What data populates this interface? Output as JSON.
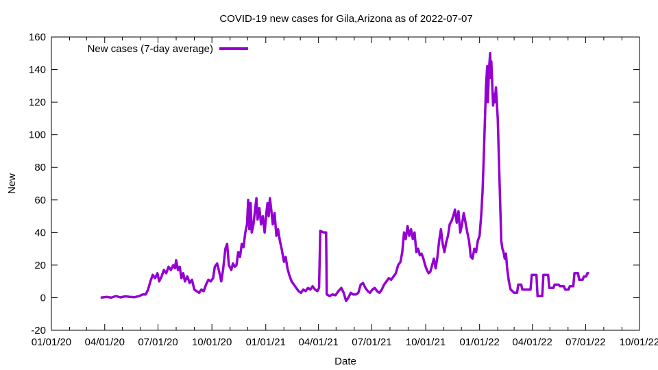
{
  "chart_data": {
    "type": "line",
    "title": "COVID-19 new cases for Gila,Arizona as of 2022-07-07",
    "xlabel": "Date",
    "ylabel": "New",
    "xlim": [
      "2020-01-01",
      "2022-10-01"
    ],
    "ylim": [
      -20,
      160
    ],
    "x_ticks": [
      "01/01/20",
      "04/01/20",
      "07/01/20",
      "10/01/20",
      "01/01/21",
      "04/01/21",
      "07/01/21",
      "10/01/21",
      "01/01/22",
      "04/01/22",
      "07/01/22",
      "10/01/22"
    ],
    "y_ticks": [
      -20,
      0,
      20,
      40,
      60,
      80,
      100,
      120,
      140,
      160
    ],
    "grid": false,
    "legend": "top-left",
    "series": [
      {
        "name": "New cases (7-day average)",
        "color": "#9400D3",
        "points": [
          [
            "2020-03-25",
            0
          ],
          [
            "2020-04-05",
            0.5
          ],
          [
            "2020-04-12",
            0
          ],
          [
            "2020-04-20",
            1
          ],
          [
            "2020-04-28",
            0.2
          ],
          [
            "2020-05-06",
            0.8
          ],
          [
            "2020-05-14",
            0.5
          ],
          [
            "2020-05-22",
            0.3
          ],
          [
            "2020-05-30",
            1
          ],
          [
            "2020-06-05",
            2
          ],
          [
            "2020-06-10",
            2
          ],
          [
            "2020-06-14",
            5
          ],
          [
            "2020-06-18",
            10
          ],
          [
            "2020-06-22",
            14
          ],
          [
            "2020-06-26",
            12
          ],
          [
            "2020-06-30",
            15
          ],
          [
            "2020-07-03",
            10
          ],
          [
            "2020-07-07",
            13
          ],
          [
            "2020-07-11",
            17
          ],
          [
            "2020-07-15",
            15
          ],
          [
            "2020-07-19",
            19
          ],
          [
            "2020-07-23",
            17
          ],
          [
            "2020-07-27",
            20
          ],
          [
            "2020-07-30",
            18
          ],
          [
            "2020-08-01",
            23
          ],
          [
            "2020-08-04",
            17
          ],
          [
            "2020-08-07",
            19
          ],
          [
            "2020-08-10",
            12
          ],
          [
            "2020-08-13",
            15
          ],
          [
            "2020-08-16",
            10
          ],
          [
            "2020-08-20",
            13
          ],
          [
            "2020-08-24",
            9
          ],
          [
            "2020-08-28",
            11
          ],
          [
            "2020-09-01",
            5
          ],
          [
            "2020-09-05",
            4
          ],
          [
            "2020-09-09",
            3
          ],
          [
            "2020-09-13",
            5
          ],
          [
            "2020-09-17",
            4
          ],
          [
            "2020-09-21",
            8
          ],
          [
            "2020-09-25",
            11
          ],
          [
            "2020-09-29",
            10
          ],
          [
            "2020-10-03",
            12
          ],
          [
            "2020-10-06",
            19
          ],
          [
            "2020-10-10",
            21
          ],
          [
            "2020-10-14",
            15
          ],
          [
            "2020-10-17",
            10
          ],
          [
            "2020-10-20",
            17
          ],
          [
            "2020-10-24",
            30
          ],
          [
            "2020-10-27",
            33
          ],
          [
            "2020-10-30",
            20
          ],
          [
            "2020-11-03",
            17
          ],
          [
            "2020-11-06",
            21
          ],
          [
            "2020-11-09",
            19
          ],
          [
            "2020-11-12",
            20
          ],
          [
            "2020-11-15",
            28
          ],
          [
            "2020-11-18",
            25
          ],
          [
            "2020-11-21",
            33
          ],
          [
            "2020-11-24",
            31
          ],
          [
            "2020-11-27",
            40
          ],
          [
            "2020-11-30",
            45
          ],
          [
            "2020-12-02",
            60
          ],
          [
            "2020-12-04",
            42
          ],
          [
            "2020-12-06",
            58
          ],
          [
            "2020-12-08",
            40
          ],
          [
            "2020-12-11",
            45
          ],
          [
            "2020-12-14",
            55
          ],
          [
            "2020-12-16",
            61
          ],
          [
            "2020-12-18",
            48
          ],
          [
            "2020-12-21",
            55
          ],
          [
            "2020-12-24",
            45
          ],
          [
            "2020-12-27",
            50
          ],
          [
            "2020-12-30",
            40
          ],
          [
            "2021-01-02",
            52
          ],
          [
            "2021-01-04",
            58
          ],
          [
            "2021-01-06",
            50
          ],
          [
            "2021-01-08",
            61
          ],
          [
            "2021-01-10",
            55
          ],
          [
            "2021-01-13",
            45
          ],
          [
            "2021-01-16",
            52
          ],
          [
            "2021-01-19",
            38
          ],
          [
            "2021-01-22",
            42
          ],
          [
            "2021-01-25",
            35
          ],
          [
            "2021-01-28",
            30
          ],
          [
            "2021-02-01",
            22
          ],
          [
            "2021-02-04",
            25
          ],
          [
            "2021-02-07",
            18
          ],
          [
            "2021-02-10",
            14
          ],
          [
            "2021-02-14",
            10
          ],
          [
            "2021-02-18",
            8
          ],
          [
            "2021-02-22",
            6
          ],
          [
            "2021-02-26",
            4
          ],
          [
            "2021-03-02",
            3
          ],
          [
            "2021-03-06",
            5
          ],
          [
            "2021-03-10",
            4
          ],
          [
            "2021-03-14",
            6
          ],
          [
            "2021-03-18",
            5
          ],
          [
            "2021-03-22",
            7
          ],
          [
            "2021-03-26",
            5
          ],
          [
            "2021-03-30",
            4
          ],
          [
            "2021-04-02",
            6
          ],
          [
            "2021-04-04",
            41
          ],
          [
            "2021-04-10",
            40
          ],
          [
            "2021-04-14",
            40
          ],
          [
            "2021-04-15",
            2
          ],
          [
            "2021-04-20",
            1
          ],
          [
            "2021-04-25",
            2
          ],
          [
            "2021-04-30",
            1.5
          ],
          [
            "2021-05-05",
            4
          ],
          [
            "2021-05-10",
            6
          ],
          [
            "2021-05-14",
            3
          ],
          [
            "2021-05-18",
            -2
          ],
          [
            "2021-05-22",
            0
          ],
          [
            "2021-05-26",
            3
          ],
          [
            "2021-05-30",
            2
          ],
          [
            "2021-06-04",
            2
          ],
          [
            "2021-06-08",
            3
          ],
          [
            "2021-06-12",
            8
          ],
          [
            "2021-06-16",
            9
          ],
          [
            "2021-06-20",
            6
          ],
          [
            "2021-06-24",
            4
          ],
          [
            "2021-06-28",
            3
          ],
          [
            "2021-07-02",
            5
          ],
          [
            "2021-07-06",
            6
          ],
          [
            "2021-07-10",
            4
          ],
          [
            "2021-07-14",
            3
          ],
          [
            "2021-07-18",
            5
          ],
          [
            "2021-07-22",
            8
          ],
          [
            "2021-07-26",
            10
          ],
          [
            "2021-07-30",
            12
          ],
          [
            "2021-08-03",
            11
          ],
          [
            "2021-08-07",
            13
          ],
          [
            "2021-08-11",
            15
          ],
          [
            "2021-08-15",
            20
          ],
          [
            "2021-08-19",
            22
          ],
          [
            "2021-08-22",
            28
          ],
          [
            "2021-08-25",
            40
          ],
          [
            "2021-08-28",
            36
          ],
          [
            "2021-08-31",
            44
          ],
          [
            "2021-09-03",
            38
          ],
          [
            "2021-09-06",
            42
          ],
          [
            "2021-09-09",
            36
          ],
          [
            "2021-09-12",
            40
          ],
          [
            "2021-09-15",
            28
          ],
          [
            "2021-09-18",
            30
          ],
          [
            "2021-09-21",
            26
          ],
          [
            "2021-09-24",
            27
          ],
          [
            "2021-09-27",
            24
          ],
          [
            "2021-09-30",
            20
          ],
          [
            "2021-10-03",
            17
          ],
          [
            "2021-10-06",
            15
          ],
          [
            "2021-10-09",
            16
          ],
          [
            "2021-10-12",
            20
          ],
          [
            "2021-10-15",
            24
          ],
          [
            "2021-10-18",
            18
          ],
          [
            "2021-10-21",
            25
          ],
          [
            "2021-10-24",
            35
          ],
          [
            "2021-10-27",
            42
          ],
          [
            "2021-10-30",
            33
          ],
          [
            "2021-11-02",
            28
          ],
          [
            "2021-11-05",
            34
          ],
          [
            "2021-11-08",
            38
          ],
          [
            "2021-11-11",
            45
          ],
          [
            "2021-11-14",
            47
          ],
          [
            "2021-11-17",
            50
          ],
          [
            "2021-11-20",
            54
          ],
          [
            "2021-11-23",
            46
          ],
          [
            "2021-11-26",
            53
          ],
          [
            "2021-11-29",
            40
          ],
          [
            "2021-12-02",
            45
          ],
          [
            "2021-12-05",
            52
          ],
          [
            "2021-12-08",
            46
          ],
          [
            "2021-12-11",
            40
          ],
          [
            "2021-12-14",
            35
          ],
          [
            "2021-12-17",
            25
          ],
          [
            "2021-12-20",
            24
          ],
          [
            "2021-12-23",
            30
          ],
          [
            "2021-12-26",
            28
          ],
          [
            "2021-12-29",
            35
          ],
          [
            "2022-01-01",
            38
          ],
          [
            "2022-01-04",
            52
          ],
          [
            "2022-01-06",
            65
          ],
          [
            "2022-01-08",
            85
          ],
          [
            "2022-01-10",
            108
          ],
          [
            "2022-01-12",
            130
          ],
          [
            "2022-01-14",
            142
          ],
          [
            "2022-01-15",
            120
          ],
          [
            "2022-01-17",
            140
          ],
          [
            "2022-01-19",
            150
          ],
          [
            "2022-01-20",
            135
          ],
          [
            "2022-01-21",
            145
          ],
          [
            "2022-01-23",
            128
          ],
          [
            "2022-01-24",
            118
          ],
          [
            "2022-01-26",
            125
          ],
          [
            "2022-01-27",
            120
          ],
          [
            "2022-01-29",
            129
          ],
          [
            "2022-02-01",
            110
          ],
          [
            "2022-02-03",
            85
          ],
          [
            "2022-02-05",
            60
          ],
          [
            "2022-02-07",
            35
          ],
          [
            "2022-02-09",
            30
          ],
          [
            "2022-02-11",
            28
          ],
          [
            "2022-02-13",
            24
          ],
          [
            "2022-02-15",
            27
          ],
          [
            "2022-02-17",
            18
          ],
          [
            "2022-02-20",
            10
          ],
          [
            "2022-02-23",
            5
          ],
          [
            "2022-02-26",
            4
          ],
          [
            "2022-03-01",
            3
          ],
          [
            "2022-03-06",
            3
          ],
          [
            "2022-03-08",
            8
          ],
          [
            "2022-03-13",
            8
          ],
          [
            "2022-03-15",
            5
          ],
          [
            "2022-03-22",
            5
          ],
          [
            "2022-03-29",
            5
          ],
          [
            "2022-03-31",
            14
          ],
          [
            "2022-04-08",
            14
          ],
          [
            "2022-04-10",
            1
          ],
          [
            "2022-04-18",
            1
          ],
          [
            "2022-04-20",
            14
          ],
          [
            "2022-04-28",
            14
          ],
          [
            "2022-04-30",
            6
          ],
          [
            "2022-05-07",
            6
          ],
          [
            "2022-05-09",
            8
          ],
          [
            "2022-05-16",
            8
          ],
          [
            "2022-05-18",
            7
          ],
          [
            "2022-05-25",
            7
          ],
          [
            "2022-05-27",
            5
          ],
          [
            "2022-06-02",
            5
          ],
          [
            "2022-06-04",
            7
          ],
          [
            "2022-06-10",
            7
          ],
          [
            "2022-06-12",
            15
          ],
          [
            "2022-06-18",
            15
          ],
          [
            "2022-06-20",
            11
          ],
          [
            "2022-06-26",
            11
          ],
          [
            "2022-06-28",
            13
          ],
          [
            "2022-07-02",
            13
          ],
          [
            "2022-07-04",
            15
          ],
          [
            "2022-07-07",
            15
          ]
        ]
      }
    ]
  }
}
